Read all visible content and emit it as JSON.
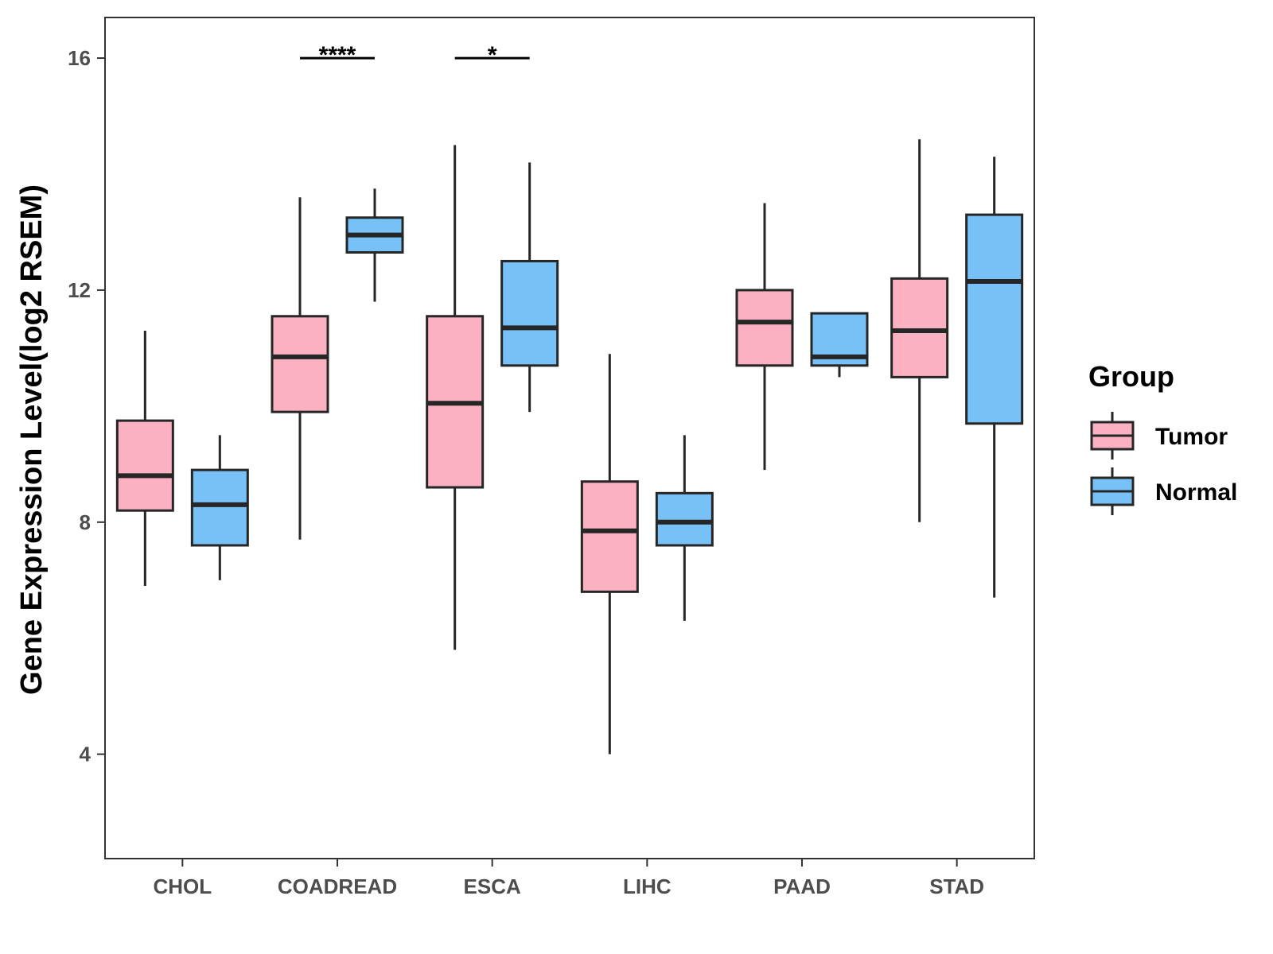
{
  "chart_data": {
    "type": "boxplot",
    "title": "",
    "xlabel": "",
    "ylabel": "Gene Expression Level(log2 RSEM)",
    "ylim": [
      2.2,
      16.7
    ],
    "yticks": [
      4,
      8,
      12,
      16
    ],
    "categories": [
      "CHOL",
      "COADREAD",
      "ESCA",
      "LIHC",
      "PAAD",
      "STAD"
    ],
    "legend": {
      "title": "Group",
      "position": "right"
    },
    "series": [
      {
        "name": "Tumor",
        "color": "#FBB1C1",
        "boxes": [
          {
            "category": "CHOL",
            "min": 6.9,
            "q1": 8.2,
            "median": 8.8,
            "q3": 9.75,
            "max": 11.3
          },
          {
            "category": "COADREAD",
            "min": 7.7,
            "q1": 9.9,
            "median": 10.85,
            "q3": 11.55,
            "max": 13.6
          },
          {
            "category": "ESCA",
            "min": 5.8,
            "q1": 8.6,
            "median": 10.05,
            "q3": 11.55,
            "max": 14.5
          },
          {
            "category": "LIHC",
            "min": 4.0,
            "q1": 6.8,
            "median": 7.85,
            "q3": 8.7,
            "max": 10.9
          },
          {
            "category": "PAAD",
            "min": 8.9,
            "q1": 10.7,
            "median": 11.45,
            "q3": 12.0,
            "max": 13.5
          },
          {
            "category": "STAD",
            "min": 8.0,
            "q1": 10.5,
            "median": 11.3,
            "q3": 12.2,
            "max": 14.6
          }
        ]
      },
      {
        "name": "Normal",
        "color": "#78C1F7",
        "boxes": [
          {
            "category": "CHOL",
            "min": 7.0,
            "q1": 7.6,
            "median": 8.3,
            "q3": 8.9,
            "max": 9.5
          },
          {
            "category": "COADREAD",
            "min": 11.8,
            "q1": 12.65,
            "median": 12.95,
            "q3": 13.25,
            "max": 13.75
          },
          {
            "category": "ESCA",
            "min": 9.9,
            "q1": 10.7,
            "median": 11.35,
            "q3": 12.5,
            "max": 14.2
          },
          {
            "category": "LIHC",
            "min": 6.3,
            "q1": 7.6,
            "median": 8.0,
            "q3": 8.5,
            "max": 9.5
          },
          {
            "category": "PAAD",
            "min": 10.5,
            "q1": 10.7,
            "median": 10.85,
            "q3": 11.6,
            "max": 11.6
          },
          {
            "category": "STAD",
            "min": 6.7,
            "q1": 9.7,
            "median": 12.15,
            "q3": 13.3,
            "max": 14.3
          }
        ]
      }
    ],
    "significance": [
      {
        "category": "COADREAD",
        "label": "****",
        "y": 16.0
      },
      {
        "category": "ESCA",
        "label": "*",
        "y": 16.0
      }
    ]
  }
}
